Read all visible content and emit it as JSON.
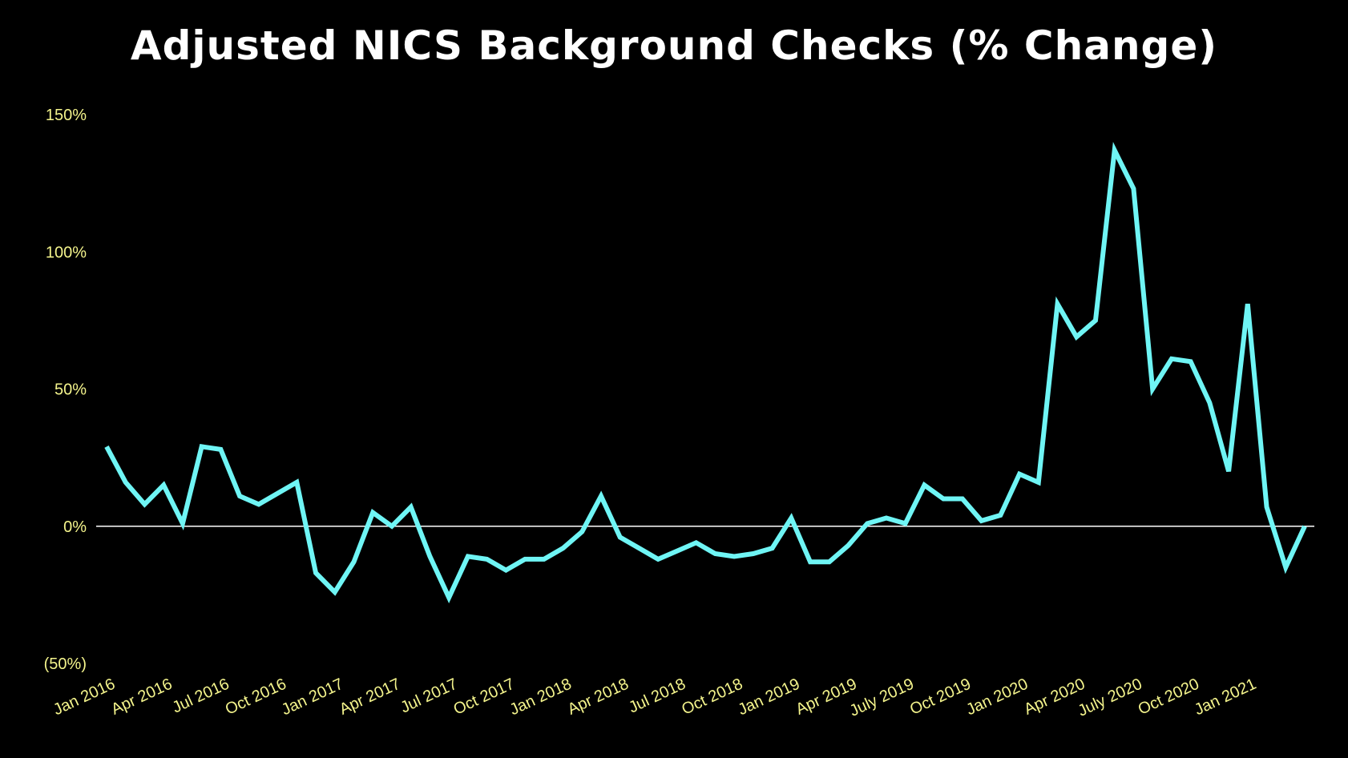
{
  "chart_data": {
    "type": "line",
    "title": "Adjusted NICS Background Checks (% Change)",
    "xlabel": "",
    "ylabel": "",
    "ylim": [
      -50,
      150
    ],
    "yticks": [
      {
        "value": 150,
        "label": "150%"
      },
      {
        "value": 100,
        "label": "100%"
      },
      {
        "value": 50,
        "label": "50%"
      },
      {
        "value": 0,
        "label": "0%"
      },
      {
        "value": -50,
        "label": "(50%)"
      }
    ],
    "xticks": [
      {
        "index": 0,
        "label": "Jan 2016"
      },
      {
        "index": 3,
        "label": "Apr 2016"
      },
      {
        "index": 6,
        "label": "Jul 2016"
      },
      {
        "index": 9,
        "label": "Oct 2016"
      },
      {
        "index": 12,
        "label": "Jan 2017"
      },
      {
        "index": 15,
        "label": "Apr 2017"
      },
      {
        "index": 18,
        "label": "Jul 2017"
      },
      {
        "index": 21,
        "label": "Oct 2017"
      },
      {
        "index": 24,
        "label": "Jan 2018"
      },
      {
        "index": 27,
        "label": "Apr 2018"
      },
      {
        "index": 30,
        "label": "Jul 2018"
      },
      {
        "index": 33,
        "label": "Oct 2018"
      },
      {
        "index": 36,
        "label": "Jan 2019"
      },
      {
        "index": 39,
        "label": "Apr 2019"
      },
      {
        "index": 42,
        "label": "July 2019"
      },
      {
        "index": 45,
        "label": "Oct 2019"
      },
      {
        "index": 48,
        "label": "Jan 2020"
      },
      {
        "index": 51,
        "label": "Apr 2020"
      },
      {
        "index": 54,
        "label": "July 2020"
      },
      {
        "index": 57,
        "label": "Oct 2020"
      },
      {
        "index": 60,
        "label": "Jan 2021"
      }
    ],
    "series": [
      {
        "color": "#6ff5f5",
        "values": [
          29,
          16,
          8,
          15,
          1,
          29,
          28,
          11,
          8,
          12,
          16,
          -17,
          -24,
          -13,
          5,
          0,
          7,
          -11,
          -26,
          -11,
          -12,
          -16,
          -12,
          -12,
          -8,
          -2,
          11,
          -4,
          -8,
          -12,
          -9,
          -6,
          -10,
          -11,
          -10,
          -8,
          3,
          -13,
          -13,
          -7,
          1,
          3,
          1,
          15,
          10,
          10,
          2,
          4,
          19,
          16,
          81,
          69,
          75,
          137,
          123,
          50,
          61,
          60,
          45,
          20,
          81,
          7,
          -15,
          0
        ]
      }
    ],
    "zero_line_color": "#ffffff",
    "grid": false,
    "legend": "none"
  }
}
